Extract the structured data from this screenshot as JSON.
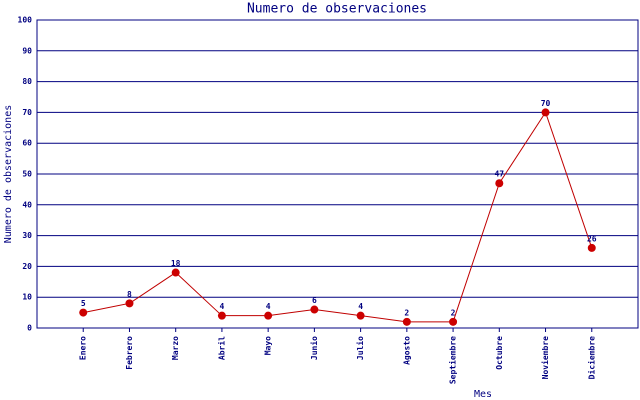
{
  "chart_data": {
    "type": "line",
    "title": "Numero de observaciones",
    "x_label": "Mes",
    "y_label": "Numero de observaciones",
    "categories": [
      "Enero",
      "Febrero",
      "Marzo",
      "Abril",
      "Mayo",
      "Junio",
      "Julio",
      "Agosto",
      "Septiembre",
      "Octubre",
      "Noviembre",
      "Diciembre"
    ],
    "values": [
      5,
      8,
      18,
      4,
      4,
      6,
      4,
      2,
      2,
      47,
      70,
      26
    ],
    "color": "#c00000",
    "marker_color": "#cc0000",
    "ylim": [
      0,
      100
    ],
    "yticks": [
      0,
      10,
      20,
      30,
      40,
      50,
      60,
      70,
      80,
      90,
      100
    ],
    "grid": true
  }
}
